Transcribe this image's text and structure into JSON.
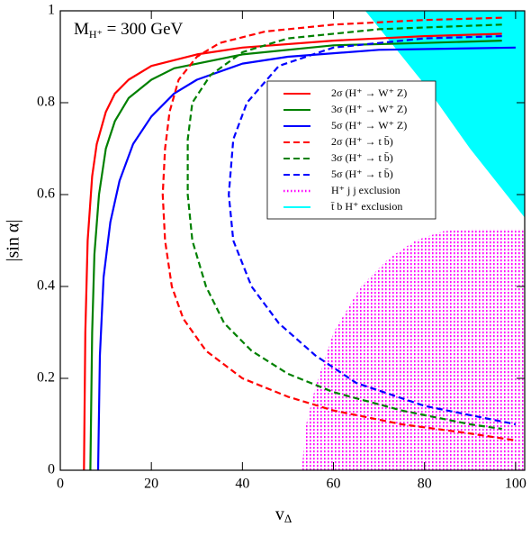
{
  "chart_data": {
    "type": "line",
    "annotation": {
      "text": "M",
      "sub": "H⁺",
      "after": " = 300 GeV"
    },
    "xlabel": {
      "text": "v",
      "sub": "Δ"
    },
    "ylabel": "|sin α|",
    "xlim": [
      0,
      102
    ],
    "ylim": [
      0,
      1
    ],
    "xticks": [
      0,
      20,
      40,
      60,
      80,
      100
    ],
    "yticks": [
      0,
      0.2,
      0.4,
      0.6,
      0.8,
      1
    ],
    "legend": "upper center",
    "series": [
      {
        "name": "2σ (H⁺ → W⁺ Z)",
        "color": "#ff0000",
        "style": "solid",
        "x": [
          5.2,
          5.5,
          6,
          7,
          8,
          10,
          12,
          15,
          20,
          30,
          40,
          60,
          80,
          97
        ],
        "values": [
          0,
          0.3,
          0.5,
          0.64,
          0.71,
          0.78,
          0.82,
          0.85,
          0.88,
          0.905,
          0.92,
          0.935,
          0.945,
          0.95
        ]
      },
      {
        "name": "3σ (H⁺ → W⁺ Z)",
        "color": "#008000",
        "style": "solid",
        "x": [
          6.6,
          7,
          7.5,
          8.5,
          10,
          12,
          15,
          20,
          25,
          40,
          60,
          80,
          97
        ],
        "values": [
          0,
          0.3,
          0.47,
          0.6,
          0.7,
          0.76,
          0.81,
          0.85,
          0.875,
          0.905,
          0.925,
          0.93,
          0.935
        ]
      },
      {
        "name": "5σ (H⁺ → W⁺ Z)",
        "color": "#0000ff",
        "style": "solid",
        "x": [
          8.3,
          8.7,
          9.5,
          11,
          13,
          16,
          20,
          25,
          30,
          40,
          50,
          70,
          100
        ],
        "values": [
          0,
          0.25,
          0.42,
          0.54,
          0.63,
          0.71,
          0.77,
          0.82,
          0.85,
          0.885,
          0.9,
          0.915,
          0.92
        ]
      },
      {
        "name": "2σ (H⁺ → t b̄)",
        "color": "#ff0000",
        "style": "dashed",
        "x": [
          97,
          80,
          60,
          45,
          35,
          30,
          26,
          24,
          23,
          22.5,
          23,
          24.5,
          27,
          32,
          40,
          50,
          60,
          75,
          90,
          100
        ],
        "values": [
          0.985,
          0.98,
          0.97,
          0.955,
          0.93,
          0.9,
          0.85,
          0.78,
          0.7,
          0.6,
          0.5,
          0.4,
          0.33,
          0.26,
          0.2,
          0.16,
          0.13,
          0.1,
          0.08,
          0.065
        ]
      },
      {
        "name": "3σ (H⁺ → t b̄)",
        "color": "#008000",
        "style": "dashed",
        "x": [
          97,
          70,
          50,
          40,
          33,
          29,
          28,
          28,
          29,
          32,
          36,
          42,
          50,
          60,
          75,
          90,
          97
        ],
        "values": [
          0.97,
          0.96,
          0.94,
          0.91,
          0.86,
          0.8,
          0.72,
          0.6,
          0.5,
          0.4,
          0.32,
          0.26,
          0.21,
          0.17,
          0.13,
          0.1,
          0.09
        ]
      },
      {
        "name": "5σ (H⁺ → t b̄)",
        "color": "#0000ff",
        "style": "dashed",
        "x": [
          97,
          80,
          60,
          48,
          41,
          38,
          37,
          38,
          42,
          48,
          56,
          65,
          80,
          95,
          100
        ],
        "values": [
          0.945,
          0.94,
          0.92,
          0.88,
          0.8,
          0.72,
          0.6,
          0.5,
          0.4,
          0.32,
          0.25,
          0.19,
          0.14,
          0.11,
          0.1
        ]
      },
      {
        "name": "H⁺ j j exclusion",
        "color": "#ff00ff",
        "style": "dotted-region",
        "x": [
          53,
          54,
          56,
          60,
          66,
          72,
          78,
          84,
          90,
          102,
          102
        ],
        "values": [
          0,
          0.1,
          0.18,
          0.3,
          0.4,
          0.46,
          0.5,
          0.52,
          0.525,
          0.525,
          0
        ]
      },
      {
        "name": "t̄ b H⁺ exclusion",
        "color": "#00ffff",
        "style": "region",
        "x": [
          67,
          102,
          102,
          90,
          80
        ],
        "values": [
          1,
          1,
          0.55,
          0.7,
          0.84
        ]
      }
    ]
  }
}
